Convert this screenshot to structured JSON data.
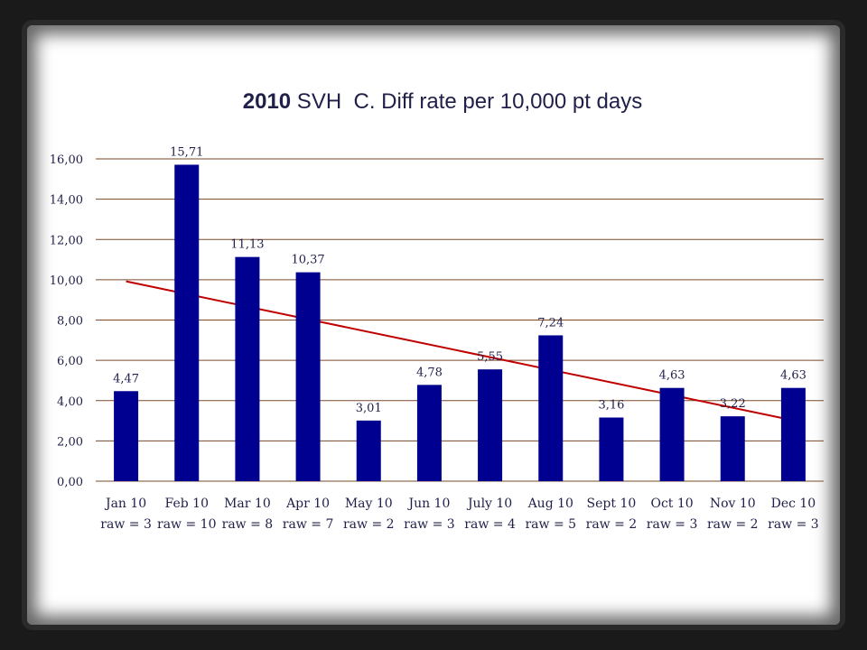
{
  "chart_data": {
    "type": "bar",
    "title_bold": "2010",
    "title_rest": " SVH  C. Diff rate per 10,000 pt days",
    "categories": [
      [
        "Jan 10",
        "raw = 3"
      ],
      [
        "Feb 10",
        "raw = 10"
      ],
      [
        "Mar 10",
        "raw = 8"
      ],
      [
        "Apr 10",
        "raw = 7"
      ],
      [
        "May 10",
        "raw = 2"
      ],
      [
        "Jun 10",
        "raw = 3"
      ],
      [
        "July 10",
        "raw = 4"
      ],
      [
        "Aug 10",
        "raw = 5"
      ],
      [
        "Sept 10",
        "raw = 2"
      ],
      [
        "Oct 10",
        "raw = 3"
      ],
      [
        "Nov 10",
        "raw = 2"
      ],
      [
        "Dec 10",
        "raw = 3"
      ]
    ],
    "values": [
      4.47,
      15.71,
      11.13,
      10.37,
      3.01,
      4.78,
      5.55,
      7.24,
      3.16,
      4.63,
      3.22,
      4.63
    ],
    "value_labels": [
      "4,47",
      "15,71",
      "11,13",
      "10,37",
      "3,01",
      "4,78",
      "5,55",
      "7,24",
      "3,16",
      "4,63",
      "3,22",
      "4,63"
    ],
    "y_ticks": [
      "0,00",
      "2,00",
      "4,00",
      "6,00",
      "8,00",
      "10,00",
      "12,00",
      "14,00",
      "16,00"
    ],
    "ylim": [
      0,
      16
    ],
    "grid": true,
    "trendline": {
      "type": "linear",
      "start": 9.92,
      "end": 3.02
    },
    "colors": {
      "bar": "#000090",
      "trend": "#c00000"
    }
  }
}
